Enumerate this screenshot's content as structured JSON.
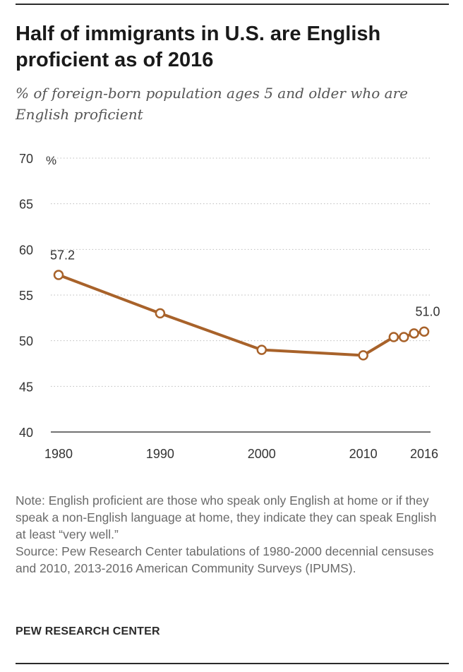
{
  "header": {
    "title": "Half of immigrants in U.S. are English proficient as of 2016",
    "subtitle": "% of foreign-born population ages 5 and older who are English proficient"
  },
  "chart_data": {
    "type": "line",
    "title": "Half of immigrants in U.S. are English proficient as of 2016",
    "subtitle": "% of foreign-born population ages 5 and older who are English proficient",
    "xlabel": "",
    "ylabel": "",
    "unit_label": "%",
    "x": [
      1980,
      1990,
      2000,
      2010,
      2013,
      2014,
      2015,
      2016
    ],
    "series": [
      {
        "values": [
          57.2,
          53.0,
          49.0,
          48.4,
          50.4,
          50.4,
          50.8,
          51.0
        ]
      }
    ],
    "x_ticks": [
      1980,
      1990,
      2000,
      2010,
      2016
    ],
    "y_ticks": [
      40,
      45,
      50,
      55,
      60,
      65,
      70
    ],
    "xlim": [
      1980,
      2016
    ],
    "ylim": [
      40,
      70
    ],
    "data_labels": [
      {
        "x": 1980,
        "text": "57.2"
      },
      {
        "x": 2016,
        "text": "51.0"
      }
    ],
    "grid": "horizontal-dotted",
    "line_color": "#a8622a",
    "marker_fill": "#ffffff"
  },
  "footer": {
    "note": "Note: English proficient are those who speak only English at home or if they speak a non-English language at home, they indicate they can speak English at least “very well.”",
    "source": "Source: Pew Research Center tabulations of 1980-2000 decennial censuses and 2010, 2013-2016 American Community Surveys (IPUMS).",
    "brand": "PEW RESEARCH CENTER"
  }
}
